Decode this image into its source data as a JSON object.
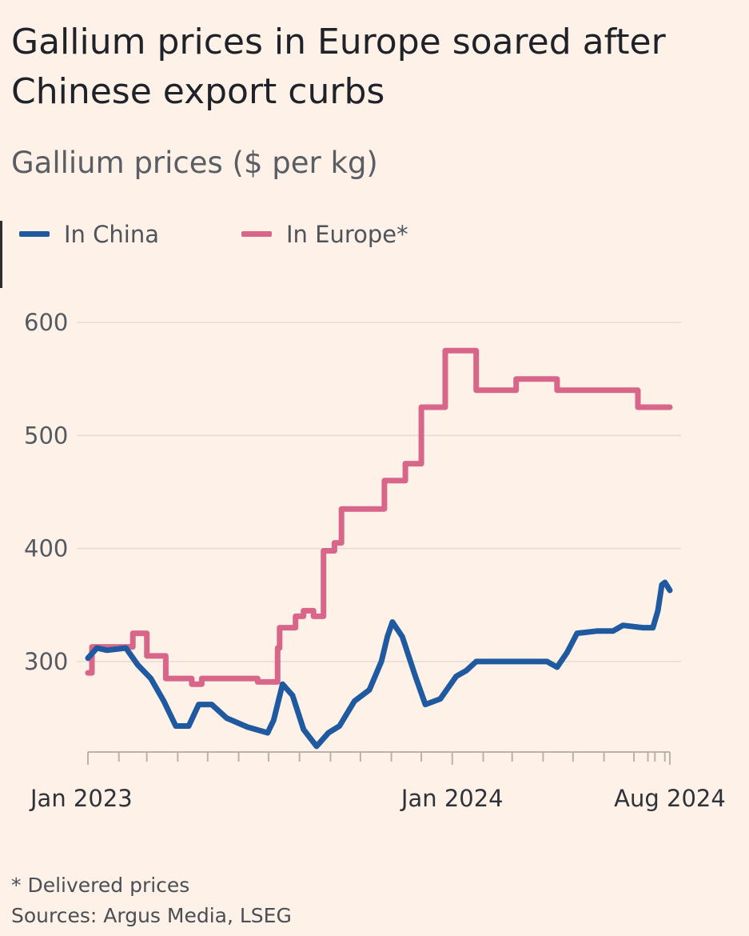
{
  "chart_data": {
    "type": "line",
    "title": "Gallium prices in Europe soared after Chinese export curbs",
    "subtitle": "Gallium prices ($ per kg)",
    "x_start": "Jan 2023",
    "x_end": "Aug 2024",
    "ylim": [
      220,
      600
    ],
    "y_ticks": [
      {
        "value": 300,
        "label": "300"
      },
      {
        "value": 400,
        "label": "400"
      },
      {
        "value": 500,
        "label": "500"
      },
      {
        "value": 600,
        "label": "600"
      }
    ],
    "x_ticks": [
      {
        "value": "2023-01",
        "label": "Jan 2023"
      },
      {
        "value": "2024-01",
        "label": "Jan 2024"
      },
      {
        "value": "2024-08",
        "label": "Aug 2024"
      }
    ],
    "grid": true,
    "legend_position": "top-left",
    "series": [
      {
        "name": "In China",
        "color": "#1f5aa0",
        "points": [
          [
            "2023-01-01",
            303
          ],
          [
            "2023-01-10",
            312
          ],
          [
            "2023-01-20",
            310
          ],
          [
            "2023-02-08",
            312
          ],
          [
            "2023-02-20",
            297
          ],
          [
            "2023-03-05",
            285
          ],
          [
            "2023-03-18",
            265
          ],
          [
            "2023-03-30",
            243
          ],
          [
            "2023-04-12",
            243
          ],
          [
            "2023-04-22",
            262
          ],
          [
            "2023-05-05",
            262
          ],
          [
            "2023-05-20",
            250
          ],
          [
            "2023-06-10",
            242
          ],
          [
            "2023-06-30",
            237
          ],
          [
            "2023-07-06",
            248
          ],
          [
            "2023-07-15",
            280
          ],
          [
            "2023-07-25",
            270
          ],
          [
            "2023-08-05",
            240
          ],
          [
            "2023-08-18",
            225
          ],
          [
            "2023-08-30",
            237
          ],
          [
            "2023-09-10",
            243
          ],
          [
            "2023-09-25",
            265
          ],
          [
            "2023-10-10",
            275
          ],
          [
            "2023-10-22",
            300
          ],
          [
            "2023-10-28",
            322
          ],
          [
            "2023-11-02",
            335
          ],
          [
            "2023-11-12",
            322
          ],
          [
            "2023-11-25",
            287
          ],
          [
            "2023-12-05",
            262
          ],
          [
            "2023-12-20",
            267
          ],
          [
            "2024-01-05",
            287
          ],
          [
            "2024-01-15",
            292
          ],
          [
            "2024-01-25",
            300
          ],
          [
            "2024-02-15",
            300
          ],
          [
            "2024-03-20",
            300
          ],
          [
            "2024-04-05",
            300
          ],
          [
            "2024-04-15",
            295
          ],
          [
            "2024-04-25",
            308
          ],
          [
            "2024-05-05",
            325
          ],
          [
            "2024-05-25",
            327
          ],
          [
            "2024-06-10",
            327
          ],
          [
            "2024-06-20",
            332
          ],
          [
            "2024-07-10",
            330
          ],
          [
            "2024-07-20",
            330
          ],
          [
            "2024-07-25",
            345
          ],
          [
            "2024-07-29",
            368
          ],
          [
            "2024-08-01",
            370
          ],
          [
            "2024-08-06",
            363
          ]
        ]
      },
      {
        "name": "In Europe*",
        "color": "#d8668b",
        "points": [
          [
            "2023-01-01",
            290
          ],
          [
            "2023-01-05",
            290
          ],
          [
            "2023-01-05",
            313
          ],
          [
            "2023-02-15",
            313
          ],
          [
            "2023-02-15",
            325
          ],
          [
            "2023-03-01",
            325
          ],
          [
            "2023-03-01",
            305
          ],
          [
            "2023-03-20",
            305
          ],
          [
            "2023-03-20",
            285
          ],
          [
            "2023-04-15",
            285
          ],
          [
            "2023-04-15",
            280
          ],
          [
            "2023-04-25",
            280
          ],
          [
            "2023-04-25",
            285
          ],
          [
            "2023-06-20",
            285
          ],
          [
            "2023-06-20",
            282
          ],
          [
            "2023-07-10",
            282
          ],
          [
            "2023-07-10",
            312
          ],
          [
            "2023-07-12",
            312
          ],
          [
            "2023-07-12",
            330
          ],
          [
            "2023-07-28",
            330
          ],
          [
            "2023-07-28",
            340
          ],
          [
            "2023-08-05",
            340
          ],
          [
            "2023-08-05",
            345
          ],
          [
            "2023-08-15",
            345
          ],
          [
            "2023-08-15",
            340
          ],
          [
            "2023-08-25",
            340
          ],
          [
            "2023-08-25",
            398
          ],
          [
            "2023-09-05",
            398
          ],
          [
            "2023-09-05",
            405
          ],
          [
            "2023-09-12",
            405
          ],
          [
            "2023-09-12",
            435
          ],
          [
            "2023-10-25",
            435
          ],
          [
            "2023-10-25",
            460
          ],
          [
            "2023-11-15",
            460
          ],
          [
            "2023-11-15",
            475
          ],
          [
            "2023-12-01",
            475
          ],
          [
            "2023-12-01",
            525
          ],
          [
            "2023-12-25",
            525
          ],
          [
            "2023-12-25",
            575
          ],
          [
            "2024-01-25",
            575
          ],
          [
            "2024-01-25",
            540
          ],
          [
            "2024-03-05",
            540
          ],
          [
            "2024-03-05",
            550
          ],
          [
            "2024-04-15",
            550
          ],
          [
            "2024-04-15",
            540
          ],
          [
            "2024-07-05",
            540
          ],
          [
            "2024-07-05",
            525
          ],
          [
            "2024-08-06",
            525
          ]
        ]
      }
    ]
  },
  "notes": {
    "footnote": "* Delivered prices",
    "sources": "Sources: Argus Media, LSEG"
  }
}
